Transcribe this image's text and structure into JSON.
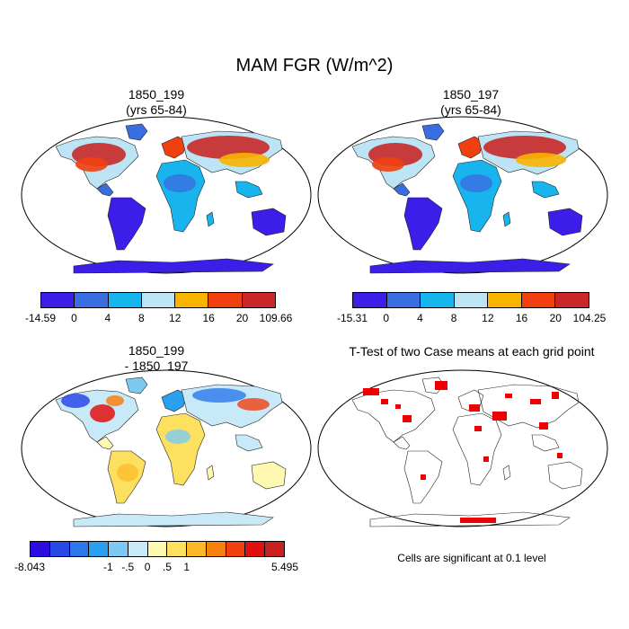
{
  "title": "MAM FGR (W/m^2)",
  "panels": [
    {
      "title_line1": "1850_199",
      "title_line2": "(yrs 65-84)",
      "colorbar": {
        "colors": [
          "#3b1ee8",
          "#3a6ee0",
          "#18b4ee",
          "#bde4f4",
          "#f8b400",
          "#f04010",
          "#c82828"
        ],
        "labels": [
          "-14.59",
          "0",
          "4",
          "8",
          "12",
          "16",
          "20",
          "109.66"
        ]
      }
    },
    {
      "title_line1": "1850_197",
      "title_line2": "(yrs 65-84)",
      "colorbar": {
        "colors": [
          "#3b1ee8",
          "#3a6ee0",
          "#18b4ee",
          "#bde4f4",
          "#f8b400",
          "#f04010",
          "#c82828"
        ],
        "labels": [
          "-15.31",
          "0",
          "4",
          "8",
          "12",
          "16",
          "20",
          "104.25"
        ]
      }
    },
    {
      "title_line1": "1850_199",
      "title_line2": "- 1850_197",
      "colorbar": {
        "colors": [
          "#2a0ee0",
          "#2a48e8",
          "#2a78ea",
          "#2aa0ee",
          "#7ccaf2",
          "#c8eaf8",
          "#fff8b0",
          "#fde060",
          "#fdb828",
          "#f88010",
          "#f04010",
          "#e01010",
          "#c82020"
        ],
        "labels": [
          "-8.043",
          "-1",
          "-.5",
          "0",
          ".5",
          "1",
          "5.495"
        ]
      }
    },
    {
      "title": "T-Test of two Case means at each grid point",
      "note": "Cells are significant at 0.1 level"
    }
  ]
}
